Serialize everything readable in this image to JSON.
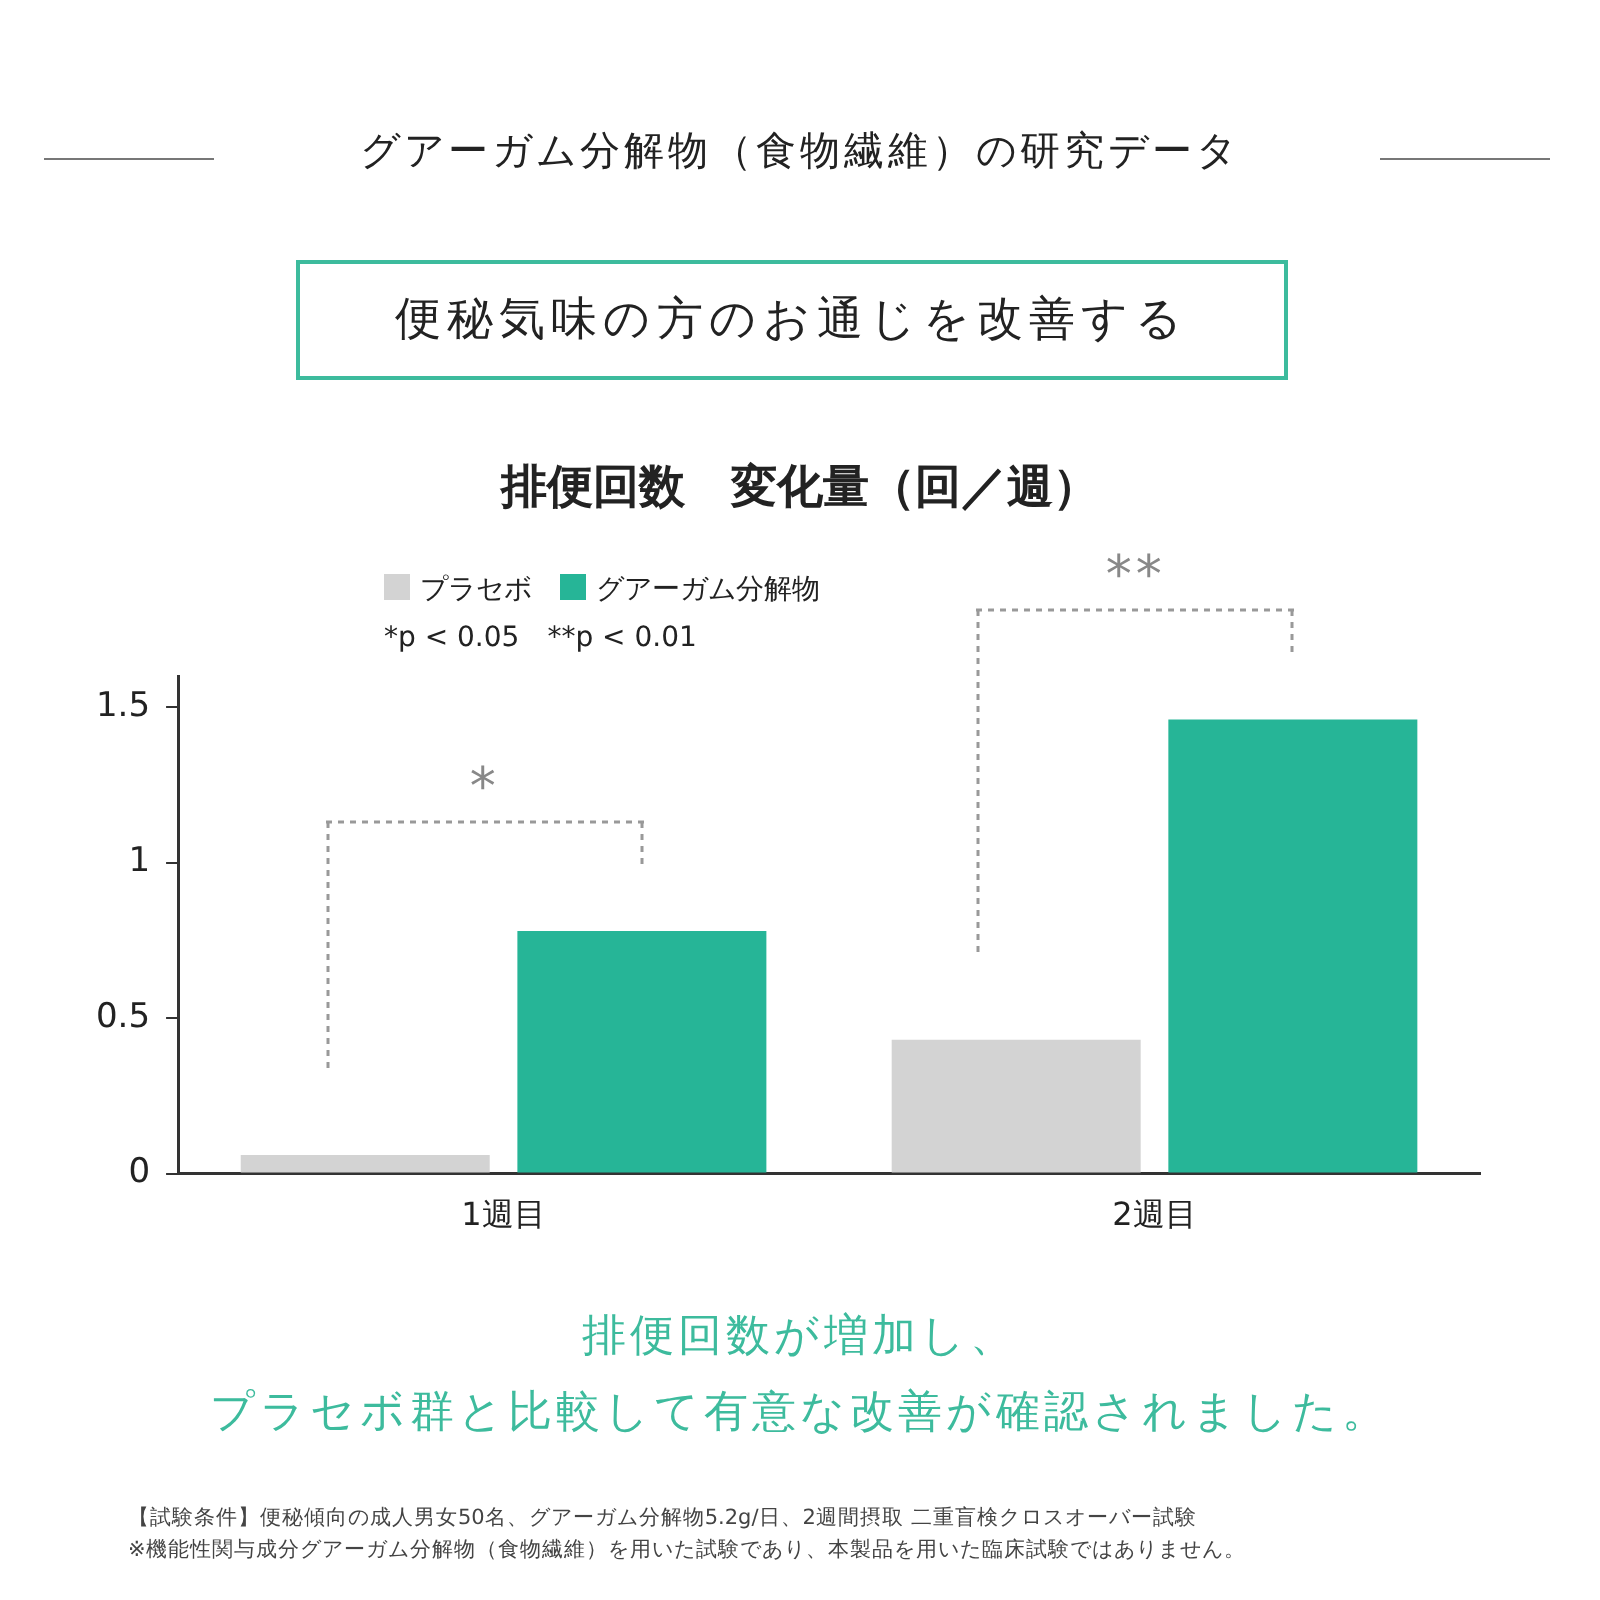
{
  "chart_data": {
    "type": "bar",
    "title": "排便回数　変化量（回／週）",
    "subtitle": "便秘気味の方のお通じを改善する",
    "categories": [
      "1週目",
      "2週目"
    ],
    "series": [
      {
        "name": "プラセボ",
        "color": "#d3d3d3",
        "values": [
          0.06,
          0.43
        ]
      },
      {
        "name": "グアーガム分解物",
        "color": "#26b597",
        "values": [
          0.78,
          1.46
        ]
      }
    ],
    "ylim": [
      0,
      1.6
    ],
    "yticks": [
      0,
      0.5,
      1,
      1.5
    ],
    "grid": false,
    "legend": "top",
    "annotations": [
      "グアーガム分解物（食物繊維）の研究データ",
      "*p < 0.05　**p < 0.01",
      "*",
      "**",
      "排便回数が増加し、",
      "プラセボ群と比較して有意な改善が確認されました。",
      "【試験条件】便秘傾向の成人男女50名、グアーガム分解物5.2g/日、2週間摂取 二重盲検クロスオーバー試験",
      "※機能性関与成分グアーガム分解物（食物繊維）を用いた試験であり、本製品を用いた臨床試験ではありません。"
    ]
  }
}
